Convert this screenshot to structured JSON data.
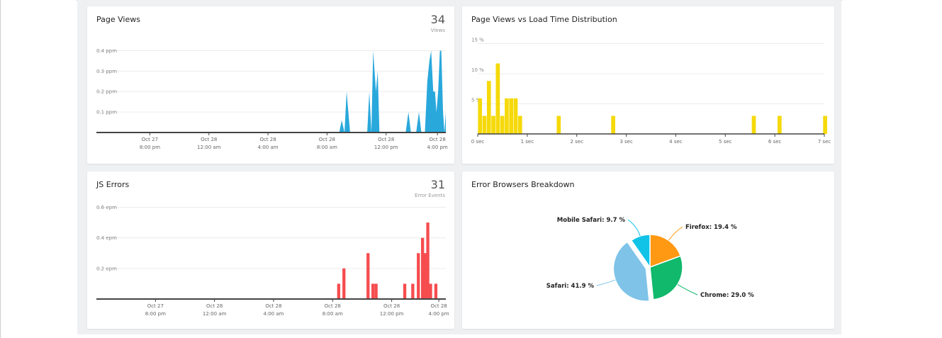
{
  "colors": {
    "page_views": "#29a8dc",
    "load_time": "#f5d90a",
    "js_errors": "#f64d4f",
    "firefox": "#ff9812",
    "chrome": "#10b96c",
    "safari": "#7fc3e8",
    "mobile_safari": "#12c3e8"
  },
  "cards": {
    "page_views": {
      "title": "Page Views",
      "value": "34",
      "unit": "Views"
    },
    "load_time": {
      "title": "Page Views vs Load Time Distribution"
    },
    "js_errors": {
      "title": "JS Errors",
      "value": "31",
      "unit": "Error Events"
    },
    "browsers": {
      "title": "Error Browsers Breakdown"
    }
  },
  "chart_data": [
    {
      "id": "page_views",
      "type": "area",
      "y_ticks": [
        "0.1 ppm",
        "0.2 ppm",
        "0.3 ppm",
        "0.4 ppm"
      ],
      "y_tick_values": [
        0.1,
        0.2,
        0.3,
        0.4
      ],
      "ylim": [
        0,
        0.45
      ],
      "xlim": [
        0,
        100
      ],
      "x_ticks": [
        {
          "x": 15.3,
          "line1": "Oct 27",
          "line2": "8:00 pm"
        },
        {
          "x": 32.2,
          "line1": "Oct 28",
          "line2": "12:00 am"
        },
        {
          "x": 49.1,
          "line1": "Oct 28",
          "line2": "4:00 am"
        },
        {
          "x": 66.0,
          "line1": "Oct 28",
          "line2": "8:00 am"
        },
        {
          "x": 82.9,
          "line1": "Oct 28",
          "line2": "12:00 pm"
        },
        {
          "x": 97.6,
          "line1": "Oct 28",
          "line2": "4:00 pm"
        }
      ],
      "points": [
        [
          0,
          0
        ],
        [
          69.5,
          0
        ],
        [
          70.2,
          0.06
        ],
        [
          71,
          0
        ],
        [
          71.6,
          0.2
        ],
        [
          72.6,
          0
        ],
        [
          77.5,
          0
        ],
        [
          78.1,
          0.2
        ],
        [
          78.7,
          0
        ],
        [
          79.2,
          0.4
        ],
        [
          80,
          0.2
        ],
        [
          80.5,
          0.3
        ],
        [
          81,
          0
        ],
        [
          88.5,
          0
        ],
        [
          89.3,
          0.1
        ],
        [
          90,
          0
        ],
        [
          91.5,
          0
        ],
        [
          92.3,
          0.1
        ],
        [
          93,
          0
        ],
        [
          94,
          0
        ],
        [
          94.7,
          0.25
        ],
        [
          95.3,
          0.35
        ],
        [
          95.8,
          0.4
        ],
        [
          96.4,
          0.2
        ],
        [
          96.9,
          0.2
        ],
        [
          97.3,
          0.1
        ],
        [
          97.8,
          0.2
        ],
        [
          98.3,
          0.4
        ],
        [
          98.7,
          0.4
        ],
        [
          99.2,
          0.1
        ],
        [
          99.6,
          0
        ],
        [
          100,
          0.1
        ],
        [
          100,
          0
        ]
      ]
    },
    {
      "id": "load_time",
      "type": "bar",
      "y_ticks": [
        "5 %",
        "10 %",
        "15 %"
      ],
      "y_tick_values": [
        5,
        10,
        15
      ],
      "ylim": [
        0,
        16
      ],
      "x_ticks": [
        "0 sec",
        "1 sec",
        "2 sec",
        "3 sec",
        "4 sec",
        "5 sec",
        "6 sec",
        "7 sec"
      ],
      "x_tick_values": [
        0,
        1,
        2,
        3,
        4,
        5,
        6,
        7
      ],
      "xlim": [
        0,
        7
      ],
      "bar_width": 0.09,
      "bars": [
        [
          0.05,
          5.9
        ],
        [
          0.14,
          3.0
        ],
        [
          0.23,
          8.8
        ],
        [
          0.32,
          3.0
        ],
        [
          0.41,
          11.7
        ],
        [
          0.5,
          3.0
        ],
        [
          0.59,
          5.9
        ],
        [
          0.68,
          5.9
        ],
        [
          0.77,
          5.9
        ],
        [
          0.86,
          3.0
        ],
        [
          1.64,
          3.0
        ],
        [
          2.74,
          3.0
        ],
        [
          5.58,
          3.0
        ],
        [
          6.1,
          3.0
        ],
        [
          7.02,
          3.0
        ]
      ]
    },
    {
      "id": "js_errors",
      "type": "bar",
      "y_ticks": [
        "0.2 epm",
        "0.4 epm",
        "0.6 epm"
      ],
      "y_tick_values": [
        0.2,
        0.4,
        0.6
      ],
      "ylim": [
        0,
        0.63
      ],
      "xlim": [
        0,
        100
      ],
      "bar_width": 1.0,
      "x_ticks": [
        {
          "x": 16.9,
          "line1": "Oct 27",
          "line2": "8:00 pm"
        },
        {
          "x": 33.8,
          "line1": "Oct 28",
          "line2": "12:00 am"
        },
        {
          "x": 50.7,
          "line1": "Oct 28",
          "line2": "4:00 am"
        },
        {
          "x": 67.6,
          "line1": "Oct 28",
          "line2": "8:00 am"
        },
        {
          "x": 84.5,
          "line1": "Oct 28",
          "line2": "12:00 pm"
        },
        {
          "x": 98.0,
          "line1": "Oct 28",
          "line2": "4:00 pm"
        }
      ],
      "bars": [
        [
          69.4,
          0.1
        ],
        [
          70.9,
          0.2
        ],
        [
          77.8,
          0.3
        ],
        [
          79.2,
          0.1
        ],
        [
          80.1,
          0.1
        ],
        [
          88.3,
          0.1
        ],
        [
          90.6,
          0.1
        ],
        [
          92.2,
          0.3
        ],
        [
          93.4,
          0.4
        ],
        [
          94.1,
          0.3
        ],
        [
          94.9,
          0.5
        ],
        [
          95.7,
          0.1
        ],
        [
          97.2,
          0.1
        ]
      ]
    },
    {
      "id": "browsers",
      "type": "pie",
      "slices": [
        {
          "name": "Firefox",
          "value": 19.4,
          "label": "Firefox: 19.4 %",
          "color_key": "firefox"
        },
        {
          "name": "Chrome",
          "value": 29.0,
          "label": "Chrome: 29.0 %",
          "color_key": "chrome"
        },
        {
          "name": "Safari",
          "value": 41.9,
          "label": "Safari: 41.9 %",
          "color_key": "safari",
          "exploded": true
        },
        {
          "name": "Mobile Safari",
          "value": 9.7,
          "label": "Mobile Safari: 9.7 %",
          "color_key": "mobile_safari"
        }
      ]
    }
  ]
}
